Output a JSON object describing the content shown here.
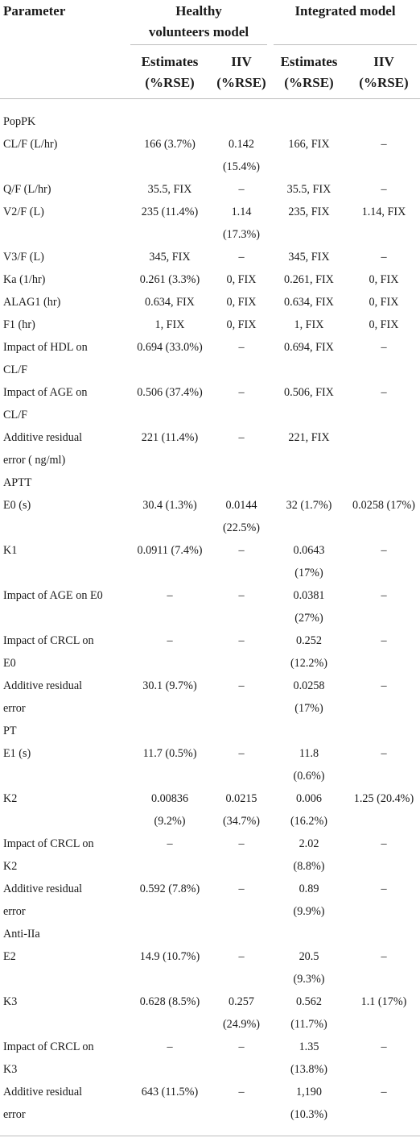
{
  "headers": {
    "parameter": "Parameter",
    "group1": "Healthy volunteers model",
    "group1_line1": "Healthy",
    "group1_line2": "volunteers model",
    "group2": "Integrated model",
    "sub": [
      {
        "line1": "Estimates",
        "line2": "(%RSE)"
      },
      {
        "line1": "IIV",
        "line2": "(%RSE)"
      },
      {
        "line1": "Estimates",
        "line2": "(%RSE)"
      },
      {
        "line1": "IIV",
        "line2": "(%RSE)"
      }
    ]
  },
  "rows": [
    {
      "section": "PopPK"
    },
    {
      "param": [
        "CL/F (L/hr)"
      ],
      "hv_est": [
        "166 (3.7%)"
      ],
      "hv_iiv": [
        "0.142",
        "(15.4%)"
      ],
      "int_est": [
        "166, FIX"
      ],
      "int_iiv": [
        "–"
      ]
    },
    {
      "param": [
        "Q/F (L/hr)"
      ],
      "hv_est": [
        "35.5, FIX"
      ],
      "hv_iiv": [
        "–"
      ],
      "int_est": [
        "35.5, FIX"
      ],
      "int_iiv": [
        "–"
      ]
    },
    {
      "param": [
        "V2/F (L)"
      ],
      "hv_est": [
        "235 (11.4%)"
      ],
      "hv_iiv": [
        "1.14",
        "(17.3%)"
      ],
      "int_est": [
        "235, FIX"
      ],
      "int_iiv": [
        "1.14, FIX"
      ]
    },
    {
      "param": [
        "V3/F (L)"
      ],
      "hv_est": [
        "345, FIX"
      ],
      "hv_iiv": [
        "–"
      ],
      "int_est": [
        "345, FIX"
      ],
      "int_iiv": [
        "–"
      ]
    },
    {
      "param": [
        "Ka (1/hr)"
      ],
      "hv_est": [
        "0.261 (3.3%)"
      ],
      "hv_iiv": [
        "0, FIX"
      ],
      "int_est": [
        "0.261, FIX"
      ],
      "int_iiv": [
        "0, FIX"
      ]
    },
    {
      "param": [
        "ALAG1 (hr)"
      ],
      "hv_est": [
        "0.634, FIX"
      ],
      "hv_iiv": [
        "0, FIX"
      ],
      "int_est": [
        "0.634, FIX"
      ],
      "int_iiv": [
        "0, FIX"
      ]
    },
    {
      "param": [
        "F1 (hr)"
      ],
      "hv_est": [
        "1, FIX"
      ],
      "hv_iiv": [
        "0, FIX"
      ],
      "int_est": [
        "1, FIX"
      ],
      "int_iiv": [
        "0, FIX"
      ]
    },
    {
      "param": [
        "Impact of HDL on",
        "CL/F"
      ],
      "hv_est": [
        "0.694 (33.0%)"
      ],
      "hv_iiv": [
        "–"
      ],
      "int_est": [
        "0.694, FIX"
      ],
      "int_iiv": [
        "–"
      ]
    },
    {
      "param": [
        "Impact of AGE on",
        "CL/F"
      ],
      "hv_est": [
        "0.506 (37.4%)"
      ],
      "hv_iiv": [
        "–"
      ],
      "int_est": [
        "0.506, FIX"
      ],
      "int_iiv": [
        "–"
      ]
    },
    {
      "param": [
        "Additive residual",
        "error ( ng/ml)"
      ],
      "hv_est": [
        "221 (11.4%)"
      ],
      "hv_iiv": [
        "–"
      ],
      "int_est": [
        "221, FIX"
      ],
      "int_iiv": [
        ""
      ]
    },
    {
      "section": "APTT"
    },
    {
      "param": [
        "E0 (s)"
      ],
      "hv_est": [
        "30.4 (1.3%)"
      ],
      "hv_iiv": [
        "0.0144",
        "(22.5%)"
      ],
      "int_est": [
        "32 (1.7%)"
      ],
      "int_iiv": [
        "0.0258 (17%)"
      ]
    },
    {
      "param": [
        "K1"
      ],
      "hv_est": [
        "0.0911 (7.4%)"
      ],
      "hv_iiv": [
        "–"
      ],
      "int_est": [
        "0.0643",
        "(17%)"
      ],
      "int_iiv": [
        "–"
      ]
    },
    {
      "param": [
        "Impact of AGE on E0"
      ],
      "hv_est": [
        "–"
      ],
      "hv_iiv": [
        "–"
      ],
      "int_est": [
        "0.0381",
        "(27%)"
      ],
      "int_iiv": [
        "–"
      ]
    },
    {
      "param": [
        "Impact of CRCL on",
        "E0"
      ],
      "hv_est": [
        "–"
      ],
      "hv_iiv": [
        "–"
      ],
      "int_est": [
        "0.252",
        "(12.2%)"
      ],
      "int_iiv": [
        "–"
      ]
    },
    {
      "param": [
        "Additive residual",
        "error"
      ],
      "hv_est": [
        "30.1 (9.7%)"
      ],
      "hv_iiv": [
        "–"
      ],
      "int_est": [
        "0.0258",
        "(17%)"
      ],
      "int_iiv": [
        "–"
      ]
    },
    {
      "section": "PT"
    },
    {
      "param": [
        "E1 (s)"
      ],
      "hv_est": [
        "11.7 (0.5%)"
      ],
      "hv_iiv": [
        "–"
      ],
      "int_est": [
        "11.8",
        "(0.6%)"
      ],
      "int_iiv": [
        "–"
      ]
    },
    {
      "param": [
        "K2"
      ],
      "hv_est": [
        "0.00836",
        "(9.2%)"
      ],
      "hv_iiv": [
        "0.0215",
        "(34.7%)"
      ],
      "int_est": [
        "0.006",
        "(16.2%)"
      ],
      "int_iiv": [
        "1.25 (20.4%)"
      ]
    },
    {
      "param": [
        "Impact of CRCL on",
        "K2"
      ],
      "hv_est": [
        "–"
      ],
      "hv_iiv": [
        "–"
      ],
      "int_est": [
        "2.02",
        "(8.8%)"
      ],
      "int_iiv": [
        "–"
      ]
    },
    {
      "param": [
        "Additive residual",
        "error"
      ],
      "hv_est": [
        "0.592 (7.8%)"
      ],
      "hv_iiv": [
        "–"
      ],
      "int_est": [
        "0.89",
        "(9.9%)"
      ],
      "int_iiv": [
        "–"
      ]
    },
    {
      "section": "Anti-IIa"
    },
    {
      "param": [
        "E2"
      ],
      "hv_est": [
        "14.9 (10.7%)"
      ],
      "hv_iiv": [
        "–"
      ],
      "int_est": [
        "20.5",
        "(9.3%)"
      ],
      "int_iiv": [
        "–"
      ]
    },
    {
      "param": [
        "K3"
      ],
      "hv_est": [
        "0.628 (8.5%)"
      ],
      "hv_iiv": [
        "0.257",
        "(24.9%)"
      ],
      "int_est": [
        "0.562",
        "(11.7%)"
      ],
      "int_iiv": [
        "1.1 (17%)"
      ]
    },
    {
      "param": [
        "Impact of CRCL on",
        "K3"
      ],
      "hv_est": [
        "–"
      ],
      "hv_iiv": [
        "–"
      ],
      "int_est": [
        "1.35",
        "(13.8%)"
      ],
      "int_iiv": [
        "–"
      ]
    },
    {
      "param": [
        "Additive residual",
        "error"
      ],
      "hv_est": [
        "643 (11.5%)"
      ],
      "hv_iiv": [
        "–"
      ],
      "int_est": [
        "1,190",
        "(10.3%)"
      ],
      "int_iiv": [
        "–"
      ]
    }
  ]
}
